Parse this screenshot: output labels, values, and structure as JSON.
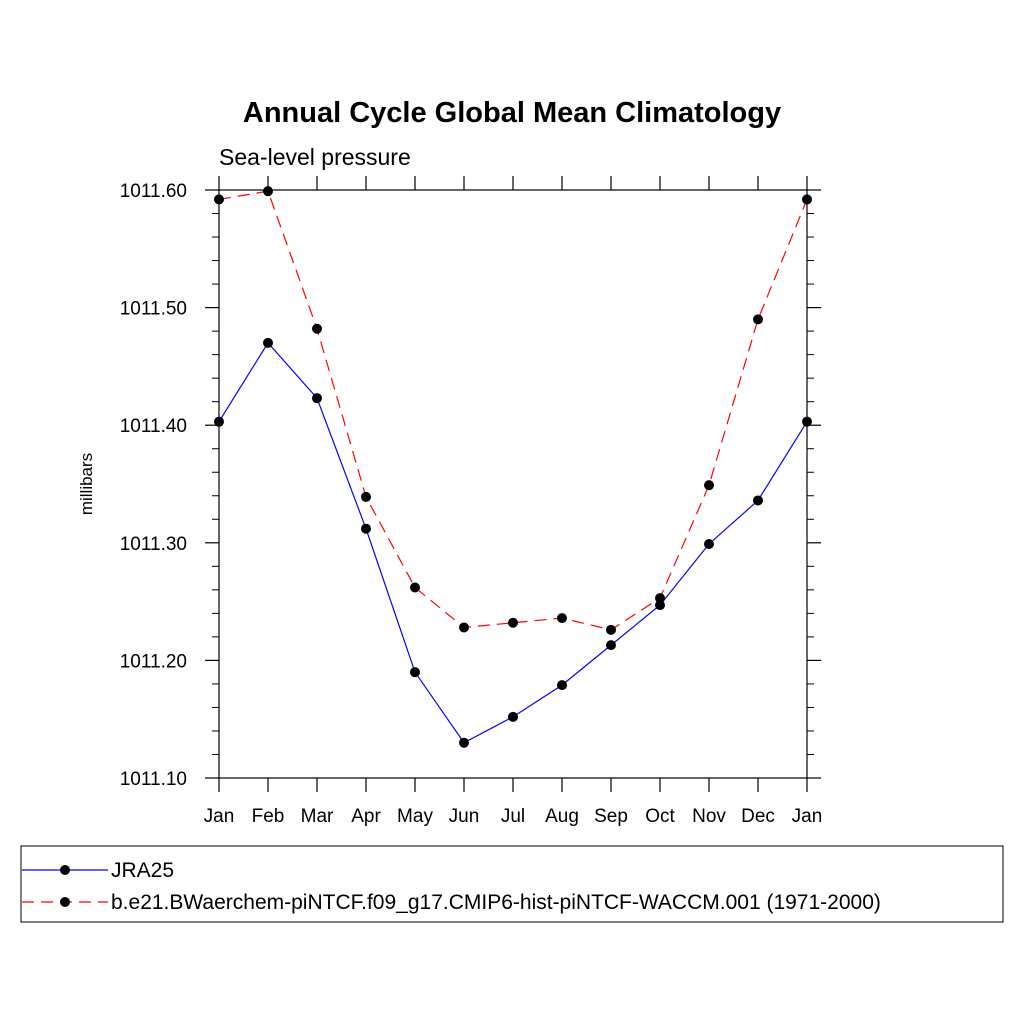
{
  "chart_data": {
    "type": "line",
    "title": "Annual Cycle Global Mean Climatology",
    "subtitle": "Sea-level pressure",
    "xlabel": "",
    "ylabel": "millibars",
    "categories": [
      "Jan",
      "Feb",
      "Mar",
      "Apr",
      "May",
      "Jun",
      "Jul",
      "Aug",
      "Sep",
      "Oct",
      "Nov",
      "Dec",
      "Jan"
    ],
    "ylim": [
      1011.1,
      1011.6
    ],
    "yticks": [
      "1011.10",
      "1011.20",
      "1011.30",
      "1011.40",
      "1011.50",
      "1011.60"
    ],
    "grid": false,
    "legend_position": "bottom",
    "series": [
      {
        "name": "JRA25",
        "color": "#0000ff",
        "line_style": "solid",
        "marker": "circle",
        "values": [
          1011.403,
          1011.47,
          1011.423,
          1011.312,
          1011.19,
          1011.13,
          1011.152,
          1011.179,
          1011.213,
          1011.247,
          1011.299,
          1011.336,
          1011.403
        ]
      },
      {
        "name": "b.e21.BWaerchem-piNTCF.f09_g17.CMIP6-hist-piNTCF-WACCM.001 (1971-2000)",
        "color": "#ff0000",
        "line_style": "dashed",
        "marker": "circle",
        "values": [
          1011.592,
          1011.599,
          1011.482,
          1011.339,
          1011.262,
          1011.228,
          1011.232,
          1011.236,
          1011.226,
          1011.253,
          1011.349,
          1011.49,
          1011.592
        ]
      }
    ]
  }
}
